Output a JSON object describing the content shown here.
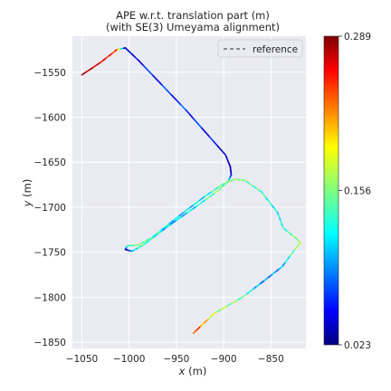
{
  "chart_data": {
    "type": "line",
    "title_line1": "APE w.r.t. translation part (m)",
    "title_line2": "(with SE(3) Umeyama alignment)",
    "xlabel_var": "x",
    "xlabel_unit": "(m)",
    "ylabel_var": "y",
    "ylabel_unit": "(m)",
    "xlim": [
      -1060,
      -813
    ],
    "ylim": [
      -1857,
      -1510
    ],
    "xticks": [
      -1050,
      -1000,
      -950,
      -900,
      -850
    ],
    "yticks": [
      -1550,
      -1600,
      -1650,
      -1700,
      -1750,
      -1800,
      -1850
    ],
    "grid": true,
    "legend": {
      "entries": [
        "reference"
      ],
      "position": "top-right"
    },
    "colorbar": {
      "min": 0.023,
      "max": 0.289,
      "ticks": [
        "0.289",
        "0.156",
        "0.023"
      ],
      "colormap": "jet"
    },
    "series": [
      {
        "name": "reference",
        "style": "dashed",
        "x": [
          -1050,
          -1030,
          -1013,
          -1004,
          -990,
          -940,
          -898,
          -893,
          -892,
          -895,
          -905,
          -930,
          -960,
          -985,
          -997,
          -1004,
          -1002,
          -990,
          -975,
          -950,
          -920,
          -900,
          -888,
          -878,
          -860,
          -843,
          -837,
          -822,
          -819,
          -824,
          -838,
          -860,
          -880,
          -910,
          -932
        ],
        "y": [
          -1553,
          -1539,
          -1525,
          -1523,
          -1537,
          -1592,
          -1642,
          -1655,
          -1664,
          -1671,
          -1681,
          -1700,
          -1722,
          -1742,
          -1749,
          -1747,
          -1743,
          -1742,
          -1733,
          -1712,
          -1688,
          -1674,
          -1669,
          -1670,
          -1683,
          -1706,
          -1723,
          -1736,
          -1740,
          -1746,
          -1766,
          -1784,
          -1800,
          -1818,
          -1840
        ],
        "error": [
          0.28,
          0.26,
          0.24,
          0.04,
          0.06,
          0.07,
          0.05,
          0.03,
          0.05,
          0.13,
          0.16,
          0.12,
          0.1,
          0.14,
          0.11,
          0.03,
          0.13,
          0.16,
          0.14,
          0.11,
          0.12,
          0.15,
          0.16,
          0.15,
          0.14,
          0.12,
          0.13,
          0.16,
          0.17,
          0.16,
          0.1,
          0.09,
          0.15,
          0.17,
          0.25
        ]
      }
    ]
  }
}
